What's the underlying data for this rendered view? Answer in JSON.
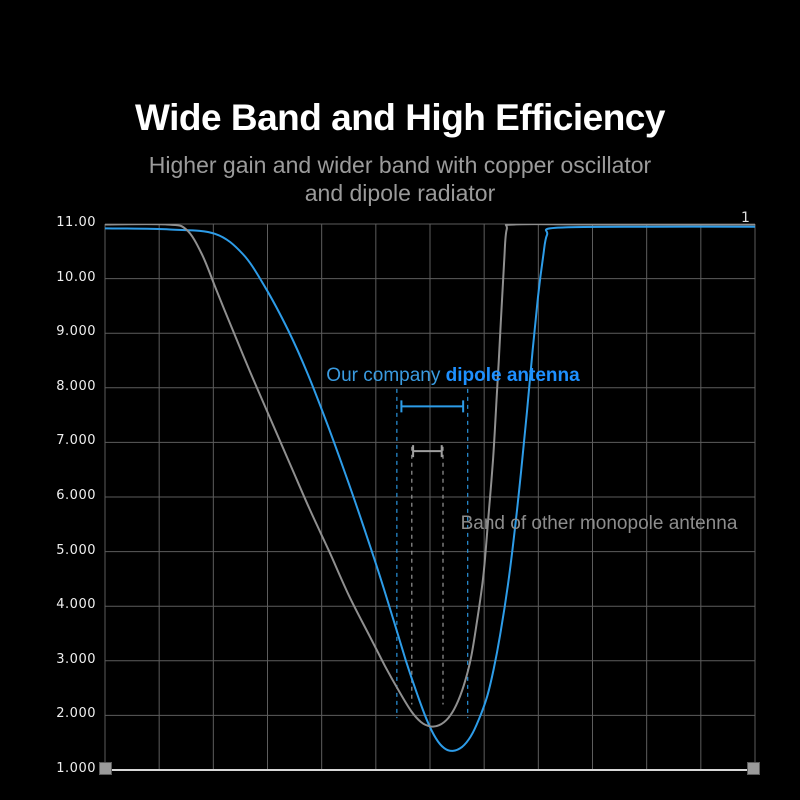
{
  "header": {
    "title": "Wide Band and High Efficiency",
    "subtitle_line1": "Higher gain and wider band with copper oscillator",
    "subtitle_line2": "and dipole radiator"
  },
  "chart_data": {
    "type": "line",
    "title": "Wide Band and High Efficiency",
    "xlabel": "",
    "ylabel": "",
    "ylim": [
      1,
      11
    ],
    "grid": true,
    "grid_color": "#5d5d5d",
    "axis_color": "#d8d8d8",
    "x_divisions": 12,
    "ytick_labels": [
      "11.00",
      "10.00",
      "9.000",
      "8.000",
      "7.000",
      "6.000",
      "5.000",
      "4.000",
      "3.000",
      "2.000",
      "1.000"
    ],
    "ytick_values": [
      11,
      10,
      9,
      8,
      7,
      6,
      5,
      4,
      3,
      2,
      1
    ],
    "series": [
      {
        "id": "dipole",
        "name": "Our company dipole antenna",
        "color": "#2d9ce8",
        "points": [
          [
            0.0,
            10.92
          ],
          [
            0.1,
            10.9
          ],
          [
            0.169,
            10.82
          ],
          [
            0.212,
            10.45
          ],
          [
            0.246,
            9.85
          ],
          [
            0.282,
            9.05
          ],
          [
            0.312,
            8.25
          ],
          [
            0.343,
            7.3
          ],
          [
            0.372,
            6.35
          ],
          [
            0.398,
            5.45
          ],
          [
            0.423,
            4.55
          ],
          [
            0.445,
            3.7
          ],
          [
            0.463,
            3.0
          ],
          [
            0.48,
            2.4
          ],
          [
            0.495,
            1.92
          ],
          [
            0.509,
            1.58
          ],
          [
            0.522,
            1.4
          ],
          [
            0.535,
            1.35
          ],
          [
            0.549,
            1.42
          ],
          [
            0.563,
            1.62
          ],
          [
            0.575,
            1.92
          ],
          [
            0.588,
            2.35
          ],
          [
            0.598,
            2.85
          ],
          [
            0.609,
            3.55
          ],
          [
            0.62,
            4.4
          ],
          [
            0.631,
            5.45
          ],
          [
            0.64,
            6.45
          ],
          [
            0.649,
            7.55
          ],
          [
            0.658,
            8.7
          ],
          [
            0.666,
            9.65
          ],
          [
            0.674,
            10.4
          ],
          [
            0.68,
            10.8
          ],
          [
            0.694,
            10.93
          ],
          [
            0.84,
            10.95
          ],
          [
            1.0,
            10.95
          ]
        ]
      },
      {
        "id": "monopole",
        "name": "Band of other monopole antenna",
        "color": "#8f8f8f",
        "points": [
          [
            0.0,
            10.99
          ],
          [
            0.095,
            10.99
          ],
          [
            0.125,
            10.9
          ],
          [
            0.149,
            10.45
          ],
          [
            0.171,
            9.8
          ],
          [
            0.195,
            9.1
          ],
          [
            0.223,
            8.3
          ],
          [
            0.252,
            7.5
          ],
          [
            0.283,
            6.65
          ],
          [
            0.314,
            5.8
          ],
          [
            0.345,
            5.0
          ],
          [
            0.375,
            4.2
          ],
          [
            0.405,
            3.5
          ],
          [
            0.431,
            2.9
          ],
          [
            0.452,
            2.45
          ],
          [
            0.471,
            2.08
          ],
          [
            0.486,
            1.88
          ],
          [
            0.5,
            1.8
          ],
          [
            0.514,
            1.82
          ],
          [
            0.528,
            1.95
          ],
          [
            0.54,
            2.18
          ],
          [
            0.552,
            2.55
          ],
          [
            0.563,
            3.05
          ],
          [
            0.572,
            3.7
          ],
          [
            0.582,
            4.55
          ],
          [
            0.589,
            5.5
          ],
          [
            0.597,
            6.7
          ],
          [
            0.603,
            7.9
          ],
          [
            0.609,
            9.2
          ],
          [
            0.614,
            10.3
          ],
          [
            0.618,
            10.9
          ],
          [
            0.63,
            10.99
          ],
          [
            0.75,
            10.99
          ],
          [
            1.0,
            10.99
          ]
        ]
      }
    ],
    "bands": [
      {
        "name": "dipole-band",
        "color": "#2d9ce8",
        "dash_t": [
          0.449,
          0.558
        ],
        "dash_v": [
          7.98,
          1.95
        ],
        "bracket": {
          "t1": 0.456,
          "t2": 0.551,
          "v": 7.66
        }
      },
      {
        "name": "monopole-band",
        "color": "#a0a0a0",
        "dash_t": [
          0.472,
          0.52
        ],
        "dash_v": [
          6.92,
          2.2
        ],
        "bracket": {
          "t1": 0.474,
          "t2": 0.518,
          "v": 6.84
        }
      }
    ],
    "labels": {
      "dipole_prefix": "Our company ",
      "dipole_bold": "dipole antenna",
      "monopole": "Band of other monopole antenna",
      "corner": "1"
    }
  }
}
